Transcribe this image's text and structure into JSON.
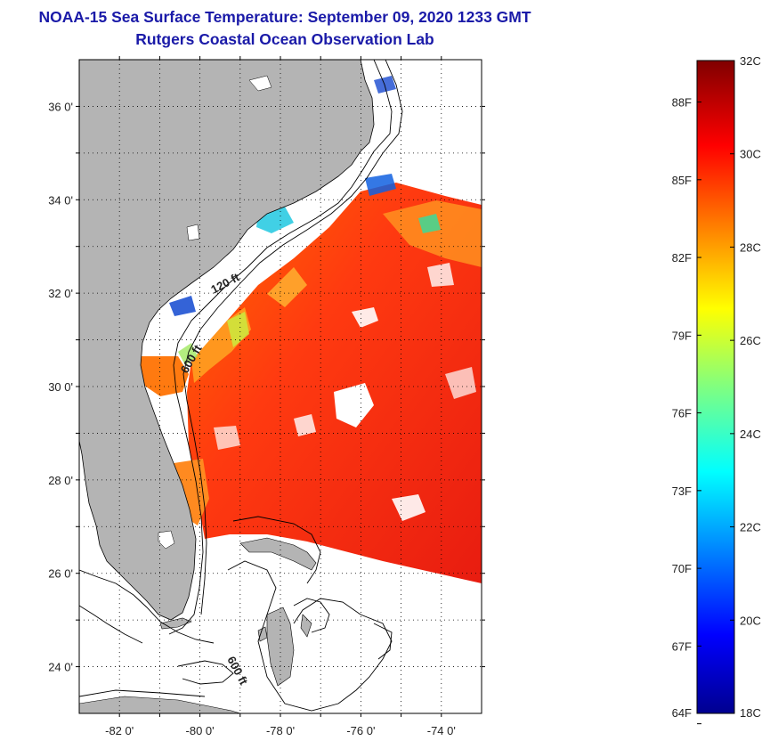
{
  "title": {
    "line1": "NOAA-15 Sea Surface Temperature:  September 09, 2020 1233 GMT",
    "line2": "Rutgers Coastal Ocean Observation Lab"
  },
  "map": {
    "lat_labels": [
      "36 0'",
      "34 0'",
      "32 0'",
      "30 0'",
      "28 0'",
      "26 0'",
      "24 0'"
    ],
    "lat_values": [
      36,
      34,
      32,
      30,
      28,
      26,
      24
    ],
    "lon_labels": [
      "-82 0'",
      "-80 0'",
      "-78 0'",
      "-76 0'",
      "-74 0'"
    ],
    "lon_values": [
      -82,
      -80,
      -78,
      -76,
      -74
    ],
    "lon_range": [
      -83,
      -73
    ],
    "lat_range": [
      23,
      37
    ],
    "contour_labels": [
      "120 ft",
      "600 ft",
      "600 ft"
    ],
    "land_color": "#b4b4b4"
  },
  "colorbar": {
    "min_c": 18,
    "max_c": 32,
    "c_labels": [
      "32C",
      "30C",
      "28C",
      "26C",
      "24C",
      "22C",
      "20C",
      "18C"
    ],
    "c_values": [
      32,
      30,
      28,
      26,
      24,
      22,
      20,
      18
    ],
    "f_labels": [
      "88F",
      "85F",
      "82F",
      "79F",
      "76F",
      "73F",
      "70F",
      "67F",
      "64F"
    ],
    "f_values": [
      88,
      85,
      82,
      79,
      76,
      73,
      70,
      67,
      64
    ]
  }
}
